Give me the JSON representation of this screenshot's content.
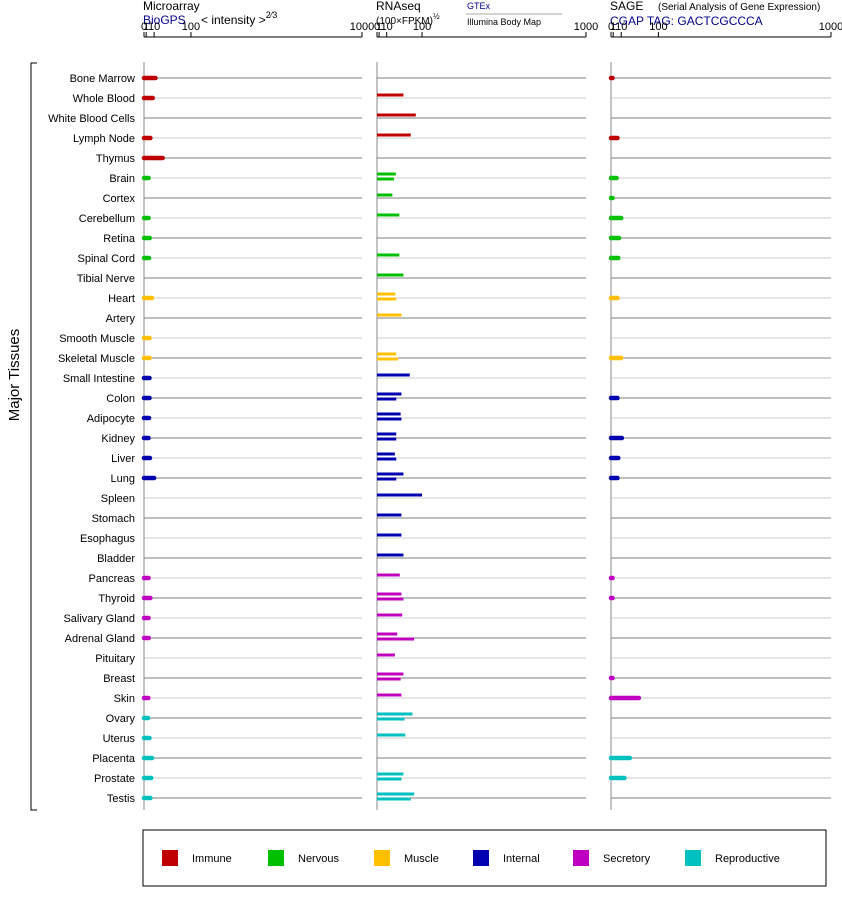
{
  "chart_data": {
    "type": "bar",
    "axis_label": "Major Tissues",
    "tick_labels": [
      "0",
      "1",
      "10",
      "100",
      "1000"
    ],
    "tick_values": [
      0,
      1,
      10,
      100,
      1000
    ],
    "xlim": [
      0,
      1000
    ],
    "panels": [
      {
        "key": "microarray",
        "title": "Microarray",
        "source": "BioGPS",
        "unit_html": "&lt; intensity &gt;<tspan dy='-6' font-size='9'>2⁄3</tspan>"
      },
      {
        "key": "rnaseq",
        "title": "RNAseq",
        "unit_html": "(100×FPKM)<tspan dy='-5' font-size='8'>½</tspan>",
        "link1": "GTEx",
        "link2": "Illumina Body Map"
      },
      {
        "key": "sage",
        "title": "SAGE",
        "subtitle": "(Serial Analysis of Gene Expression)",
        "source": "CGAP TAG: GACTCGCCCA"
      }
    ],
    "groups": {
      "Immune": "#c00000",
      "Nervous": "#00c000",
      "Muscle": "#ffc000",
      "Internal": "#0000b0",
      "Secretory": "#c000c0",
      "Reproductive": "#00c0c0"
    },
    "legend": [
      "Immune",
      "Nervous",
      "Muscle",
      "Internal",
      "Secretory",
      "Reproductive"
    ],
    "tissues": [
      {
        "name": "Bone Marrow",
        "group": "Immune",
        "microarray": [
          12
        ],
        "rnaseq": [],
        "sage": [
          0.02
        ]
      },
      {
        "name": "Whole Blood",
        "group": "Immune",
        "microarray": [
          8
        ],
        "rnaseq": [
          45
        ],
        "sage": []
      },
      {
        "name": "White Blood Cells",
        "group": "Immune",
        "microarray": [],
        "rnaseq": [
          80
        ],
        "sage": []
      },
      {
        "name": "Lymph Node",
        "group": "Immune",
        "microarray": [
          5
        ],
        "rnaseq": [
          65
        ],
        "sage": [
          5
        ]
      },
      {
        "name": "Thymus",
        "group": "Immune",
        "microarray": [
          25
        ],
        "rnaseq": [],
        "sage": []
      },
      {
        "name": "Brain",
        "group": "Nervous",
        "microarray": [
          3
        ],
        "rnaseq": [
          27,
          23
        ],
        "sage": [
          4
        ]
      },
      {
        "name": "Cortex",
        "group": "Nervous",
        "microarray": [],
        "rnaseq": [
          20
        ],
        "sage": [
          0.01
        ]
      },
      {
        "name": "Cerebellum",
        "group": "Nervous",
        "microarray": [
          3
        ],
        "rnaseq": [
          35
        ],
        "sage": [
          10
        ]
      },
      {
        "name": "Retina",
        "group": "Nervous",
        "microarray": [
          4.2
        ],
        "rnaseq": [],
        "sage": [
          7
        ]
      },
      {
        "name": "Spinal Cord",
        "group": "Nervous",
        "microarray": [
          3.5
        ],
        "rnaseq": [
          35
        ],
        "sage": [
          6
        ]
      },
      {
        "name": "Tibial Nerve",
        "group": "Nervous",
        "microarray": [],
        "rnaseq": [
          45
        ],
        "sage": []
      },
      {
        "name": "Heart",
        "group": "Muscle",
        "microarray": [
          7
        ],
        "rnaseq": [
          26,
          28
        ],
        "sage": [
          5
        ]
      },
      {
        "name": "Artery",
        "group": "Muscle",
        "microarray": [],
        "rnaseq": [
          40
        ],
        "sage": []
      },
      {
        "name": "Smooth Muscle",
        "group": "Muscle",
        "microarray": [
          4
        ],
        "rnaseq": [],
        "sage": []
      },
      {
        "name": "Skeletal Muscle",
        "group": "Muscle",
        "microarray": [
          4
        ],
        "rnaseq": [
          28,
          32
        ],
        "sage": [
          10
        ]
      },
      {
        "name": "Small Intestine",
        "group": "Internal",
        "microarray": [
          4
        ],
        "rnaseq": [
          62
        ],
        "sage": []
      },
      {
        "name": "Colon",
        "group": "Internal",
        "microarray": [
          4
        ],
        "rnaseq": [
          40,
          28
        ],
        "sage": [
          5
        ]
      },
      {
        "name": "Adipocyte",
        "group": "Internal",
        "microarray": [
          3.5
        ],
        "rnaseq": [
          38,
          40
        ],
        "sage": []
      },
      {
        "name": "Kidney",
        "group": "Internal",
        "microarray": [
          3
        ],
        "rnaseq": [
          28,
          28
        ],
        "sage": [
          11
        ]
      },
      {
        "name": "Liver",
        "group": "Internal",
        "microarray": [
          4.5
        ],
        "rnaseq": [
          25,
          28
        ],
        "sage": [
          6
        ]
      },
      {
        "name": "Lung",
        "group": "Internal",
        "microarray": [
          10
        ],
        "rnaseq": [
          45,
          28
        ],
        "sage": [
          5
        ]
      },
      {
        "name": "Spleen",
        "group": "Internal",
        "microarray": [],
        "rnaseq": [
          100
        ],
        "sage": []
      },
      {
        "name": "Stomach",
        "group": "Internal",
        "microarray": [],
        "rnaseq": [
          40
        ],
        "sage": []
      },
      {
        "name": "Esophagus",
        "group": "Internal",
        "microarray": [],
        "rnaseq": [
          40
        ],
        "sage": []
      },
      {
        "name": "Bladder",
        "group": "Internal",
        "microarray": [],
        "rnaseq": [
          45
        ],
        "sage": []
      },
      {
        "name": "Pancreas",
        "group": "Secretory",
        "microarray": [
          3
        ],
        "rnaseq": [
          36
        ],
        "sage": [
          0.02
        ]
      },
      {
        "name": "Thyroid",
        "group": "Secretory",
        "microarray": [
          5
        ],
        "rnaseq": [
          40,
          45
        ],
        "sage": [
          0.02
        ]
      },
      {
        "name": "Salivary Gland",
        "group": "Secretory",
        "microarray": [
          3
        ],
        "rnaseq": [
          42
        ],
        "sage": []
      },
      {
        "name": "Adrenal Gland",
        "group": "Secretory",
        "microarray": [
          3.2
        ],
        "rnaseq": [
          30,
          75
        ],
        "sage": []
      },
      {
        "name": "Pituitary",
        "group": "Secretory",
        "microarray": [],
        "rnaseq": [
          25
        ],
        "sage": []
      },
      {
        "name": "Breast",
        "group": "Secretory",
        "microarray": [],
        "rnaseq": [
          45,
          38
        ],
        "sage": [
          0.02
        ]
      },
      {
        "name": "Skin",
        "group": "Secretory",
        "microarray": [
          2.8
        ],
        "rnaseq": [
          40
        ],
        "sage": [
          45
        ]
      },
      {
        "name": "Ovary",
        "group": "Reproductive",
        "microarray": [
          2.5
        ],
        "rnaseq": [
          70,
          48
        ],
        "sage": []
      },
      {
        "name": "Uterus",
        "group": "Reproductive",
        "microarray": [
          4
        ],
        "rnaseq": [
          50
        ],
        "sage": []
      },
      {
        "name": "Placenta",
        "group": "Reproductive",
        "microarray": [
          7
        ],
        "rnaseq": [],
        "sage": [
          25
        ]
      },
      {
        "name": "Prostate",
        "group": "Reproductive",
        "microarray": [
          6
        ],
        "rnaseq": [
          45,
          40
        ],
        "sage": [
          15
        ]
      },
      {
        "name": "Testis",
        "group": "Reproductive",
        "microarray": [
          5
        ],
        "rnaseq": [
          75,
          65
        ],
        "sage": []
      }
    ]
  }
}
